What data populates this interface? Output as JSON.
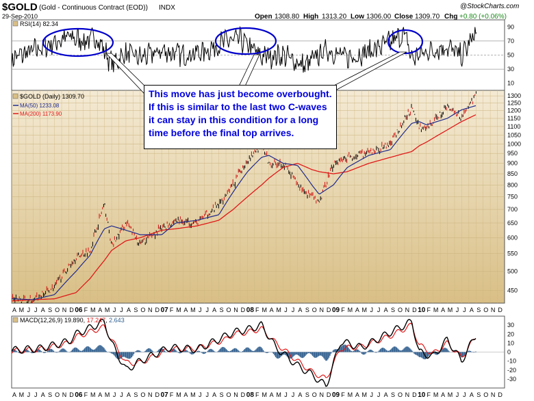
{
  "header": {
    "symbol": "$GOLD",
    "description": "(Gold - Continuous Contract (EOD))",
    "exchange": "INDX",
    "date": "29-Sep-2010",
    "open_label": "Open",
    "open": "1308.80",
    "high_label": "High",
    "high": "1313.20",
    "low_label": "Low",
    "low": "1306.00",
    "close_label": "Close",
    "close": "1309.70",
    "chg_label": "Chg",
    "chg": "+0.80 (+0.06%)",
    "watermark": "@StockCharts.com",
    "chg_color": "#1a8a1a"
  },
  "annotation": {
    "text": "This move has just become overbought. If this is similar to the last two C-waves it can stay in this condition for a long time before the final top arrives.",
    "color": "#0000dd",
    "ellipse_color": "#0000cc"
  },
  "colors": {
    "panel_bg": "#ffffff",
    "price_bg_top": "#f4ead4",
    "price_bg_bottom": "#d9bf86",
    "rsi_line": "#000000",
    "ma50": "#1f2a8c",
    "ma200": "#e01818",
    "macd_line": "#000000",
    "macd_signal": "#e01818",
    "macd_hist": "#2f5e8e",
    "up_bar": "#000000",
    "down_bar": "#d01010"
  },
  "chart_data": [
    {
      "type": "line",
      "panel": "RSI",
      "legend": "RSI(14) 82.34",
      "ylim": [
        0,
        100
      ],
      "y_ticks": [
        10,
        30,
        50,
        70,
        90
      ],
      "reference_lines": [
        30,
        50,
        70
      ],
      "latest": 82.34,
      "x": [
        "2005-04",
        "2005-08",
        "2005-10",
        "2005-12",
        "2006-02",
        "2006-04",
        "2006-06",
        "2006-08",
        "2006-10",
        "2007-01",
        "2007-04",
        "2007-07",
        "2007-10",
        "2007-12",
        "2008-03",
        "2008-06",
        "2008-09",
        "2008-10",
        "2008-12",
        "2009-03",
        "2009-06",
        "2009-09",
        "2009-11",
        "2009-12",
        "2010-02",
        "2010-05",
        "2010-07",
        "2010-09"
      ],
      "values": [
        45,
        60,
        68,
        76,
        70,
        74,
        38,
        52,
        46,
        56,
        50,
        55,
        70,
        72,
        48,
        50,
        34,
        42,
        58,
        46,
        55,
        68,
        80,
        45,
        55,
        62,
        48,
        82.34
      ]
    },
    {
      "type": "line",
      "panel": "Price",
      "legend": "$GOLD (Daily) 1309.70",
      "scale": "log",
      "ylim": [
        420,
        1340
      ],
      "y_ticks": [
        450,
        500,
        550,
        600,
        650,
        700,
        750,
        800,
        850,
        900,
        950,
        1000,
        1050,
        1100,
        1150,
        1200,
        1250,
        1300
      ],
      "x_ticks": [
        "A",
        "M",
        "J",
        "J",
        "A",
        "S",
        "O",
        "N",
        "D",
        "06",
        "F",
        "M",
        "A",
        "M",
        "J",
        "J",
        "A",
        "S",
        "O",
        "N",
        "D",
        "07",
        "F",
        "M",
        "A",
        "M",
        "J",
        "J",
        "A",
        "S",
        "O",
        "N",
        "D",
        "08",
        "F",
        "M",
        "A",
        "M",
        "J",
        "J",
        "A",
        "S",
        "O",
        "N",
        "D",
        "09",
        "F",
        "M",
        "A",
        "M",
        "J",
        "J",
        "A",
        "S",
        "O",
        "N",
        "D",
        "10",
        "F",
        "M",
        "A",
        "M",
        "J",
        "J",
        "A",
        "S",
        "O",
        "N",
        "D"
      ],
      "x": [
        "2005-04",
        "2005-07",
        "2005-10",
        "2006-01",
        "2006-03",
        "2006-05",
        "2006-06",
        "2006-08",
        "2006-10",
        "2007-01",
        "2007-03",
        "2007-06",
        "2007-09",
        "2007-11",
        "2008-01",
        "2008-03",
        "2008-04",
        "2008-06",
        "2008-08",
        "2008-10",
        "2008-11",
        "2009-01",
        "2009-03",
        "2009-06",
        "2009-09",
        "2009-12",
        "2010-01",
        "2010-02",
        "2010-05",
        "2010-07",
        "2010-09"
      ],
      "series": [
        {
          "name": "$GOLD (Daily) 1309.70",
          "values": [
            430,
            425,
            460,
            540,
            560,
            720,
            570,
            650,
            580,
            630,
            660,
            650,
            720,
            800,
            920,
            1000,
            900,
            900,
            800,
            750,
            720,
            900,
            930,
            950,
            1000,
            1215,
            1100,
            1080,
            1230,
            1160,
            1309.7
          ]
        },
        {
          "name": "MA(50) 1233.08",
          "values": [
            430,
            428,
            440,
            500,
            545,
            630,
            640,
            625,
            610,
            610,
            650,
            660,
            680,
            770,
            860,
            930,
            940,
            900,
            890,
            800,
            760,
            800,
            880,
            940,
            970,
            1120,
            1130,
            1110,
            1150,
            1205,
            1233.08
          ]
        },
        {
          "name": "MA(200) 1173.90",
          "values": [
            425,
            428,
            430,
            445,
            480,
            530,
            560,
            590,
            600,
            625,
            630,
            640,
            660,
            700,
            750,
            800,
            830,
            880,
            900,
            870,
            860,
            850,
            860,
            900,
            930,
            960,
            990,
            1010,
            1080,
            1130,
            1173.9
          ]
        }
      ]
    },
    {
      "type": "line",
      "panel": "MACD",
      "legend_label": "MACD(12,26,9)",
      "legend_values": [
        "19.890",
        "17.247",
        "2.643"
      ],
      "ylim": [
        -40,
        40
      ],
      "y_ticks": [
        -30,
        -20,
        -10,
        0,
        10,
        20,
        30
      ],
      "x": [
        "2005-04",
        "2005-08",
        "2005-12",
        "2006-01",
        "2006-05",
        "2006-06",
        "2006-08",
        "2006-10",
        "2007-02",
        "2007-06",
        "2007-10",
        "2007-11",
        "2008-01",
        "2008-03",
        "2008-05",
        "2008-08",
        "2008-10",
        "2008-12",
        "2009-02",
        "2009-05",
        "2009-09",
        "2009-12",
        "2010-01",
        "2010-03",
        "2010-05",
        "2010-07",
        "2010-09"
      ],
      "series": [
        {
          "name": "MACD(12,26,9)",
          "values": [
            2,
            4,
            12,
            20,
            34,
            10,
            -20,
            -10,
            5,
            3,
            18,
            22,
            25,
            30,
            5,
            -15,
            -25,
            -38,
            12,
            5,
            22,
            34,
            0,
            -5,
            14,
            -10,
            19.89
          ]
        },
        {
          "name": "Signal",
          "values": [
            1,
            3,
            10,
            17,
            28,
            14,
            -12,
            -12,
            3,
            4,
            14,
            20,
            22,
            26,
            10,
            -10,
            -22,
            -30,
            4,
            6,
            18,
            30,
            8,
            -2,
            10,
            -6,
            17.247
          ]
        },
        {
          "name": "Histogram",
          "values": [
            1,
            1,
            2,
            3,
            6,
            -4,
            -8,
            2,
            2,
            -1,
            4,
            2,
            3,
            4,
            -5,
            -5,
            -3,
            -8,
            8,
            -1,
            4,
            4,
            -8,
            -3,
            4,
            -4,
            2.643
          ]
        }
      ]
    }
  ]
}
